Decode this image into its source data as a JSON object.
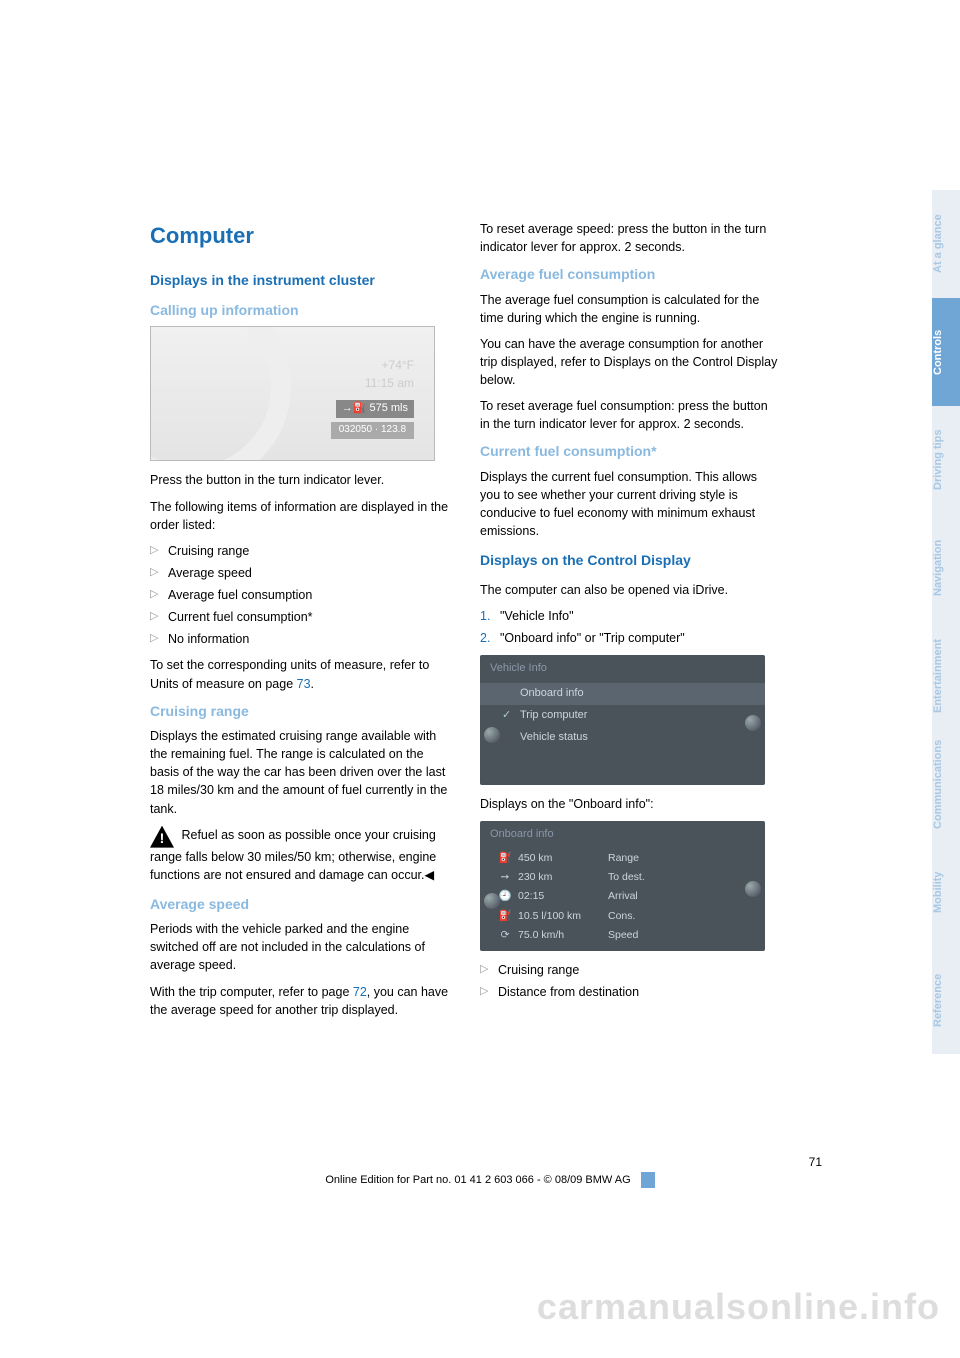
{
  "title": "Computer",
  "sections": {
    "displays_cluster": "Displays in the instrument cluster",
    "calling_up": "Calling up information",
    "cruising_range": "Cruising range",
    "average_speed": "Average speed",
    "avg_fuel": "Average fuel consumption",
    "current_fuel": "Current fuel consumption*",
    "displays_control": "Displays on the Control Display"
  },
  "cluster_figure": {
    "temp": "+74°F",
    "time": "11:15 am",
    "range_box": "→⛽  575 mls",
    "odo": "032050 · 123.8"
  },
  "calling_up_p1": "Press the button in the turn indicator lever.",
  "calling_up_p2": "The following items of information are displayed in the order listed:",
  "info_list": [
    "Cruising range",
    "Average speed",
    "Average fuel consumption",
    "Current fuel consumption*",
    "No information"
  ],
  "units_note_pre": "To set the corresponding units of measure, refer to Units of measure on page ",
  "units_note_link": "73",
  "units_note_post": ".",
  "cruising_p": "Displays the estimated cruising range available with the remaining fuel. The range is calculated on the basis of the way the car has been driven over the last 18 miles/30 km and the amount of fuel currently in the tank.",
  "warn_text": "Refuel as soon as possible once your cruising range falls below 30 miles/50 km; otherwise, engine functions are not ensured and damage can occur.◀",
  "avg_speed_p1": "Periods with the vehicle parked and the engine switched off are not included in the calculations of average speed.",
  "avg_speed_p2_pre": "With the trip computer, refer to page ",
  "avg_speed_p2_link": "72",
  "avg_speed_p2_post": ", you can have the average speed for another trip displayed.",
  "avg_speed_p3": "To reset average speed: press the button in the turn indicator lever for approx. 2 seconds.",
  "avg_fuel_p1": "The average fuel consumption is calculated for the time during which the engine is running.",
  "avg_fuel_p2": "You can have the average consumption for another trip displayed, refer to Displays on the Control Display below.",
  "avg_fuel_p3": "To reset average fuel consumption: press the button in the turn indicator lever for approx. 2 seconds.",
  "current_fuel_p": "Displays the current fuel consumption. This allows you to see whether your current driving style is conducive to fuel economy with minimum exhaust emissions.",
  "displays_control_p": "The computer can also be opened via iDrive.",
  "idrive_steps": [
    "\"Vehicle Info\"",
    "\"Onboard info\" or \"Trip computer\""
  ],
  "menu_figure": {
    "header": "Vehicle Info",
    "items": [
      "Onboard info",
      "Trip computer",
      "Vehicle status"
    ],
    "selected_index": 0,
    "checked_index": 1
  },
  "onboard_caption": "Displays on the \"Onboard info\":",
  "onboard_figure": {
    "header": "Onboard info",
    "rows": [
      {
        "icon": "⛽",
        "val": "450  km",
        "lbl": "Range"
      },
      {
        "icon": "➙",
        "val": "230  km",
        "lbl": "To dest."
      },
      {
        "icon": "🕘",
        "val": "02:15",
        "lbl": "Arrival"
      },
      {
        "icon": "⛽",
        "val": "10.5 l/100 km",
        "lbl": "Cons."
      },
      {
        "icon": "⟳",
        "val": "75.0 km/h",
        "lbl": "Speed"
      }
    ]
  },
  "onboard_list": [
    "Cruising range",
    "Distance from destination"
  ],
  "page_num": "71",
  "footer": "Online Edition for Part no. 01 41 2 603 066 - © 08/09 BMW AG",
  "watermark": "carmanualsonline.info",
  "tabs": [
    {
      "label": "At a glance",
      "active": false
    },
    {
      "label": "Controls",
      "active": true
    },
    {
      "label": "Driving tips",
      "active": false
    },
    {
      "label": "Navigation",
      "active": false
    },
    {
      "label": "Entertainment",
      "active": false
    },
    {
      "label": "Communications",
      "active": false
    },
    {
      "label": "Mobility",
      "active": false
    },
    {
      "label": "Reference",
      "active": false
    }
  ],
  "colors": {
    "blue_heading": "#1a6fb4",
    "light_blue_heading": "#8ab9e0",
    "tab_active_bg": "#6fa6d6",
    "tab_inactive_bg": "#e8eef4",
    "tab_inactive_fg": "#a9c8e4",
    "figure_dark_bg": "#4a525a",
    "watermark": "#dddddd"
  }
}
